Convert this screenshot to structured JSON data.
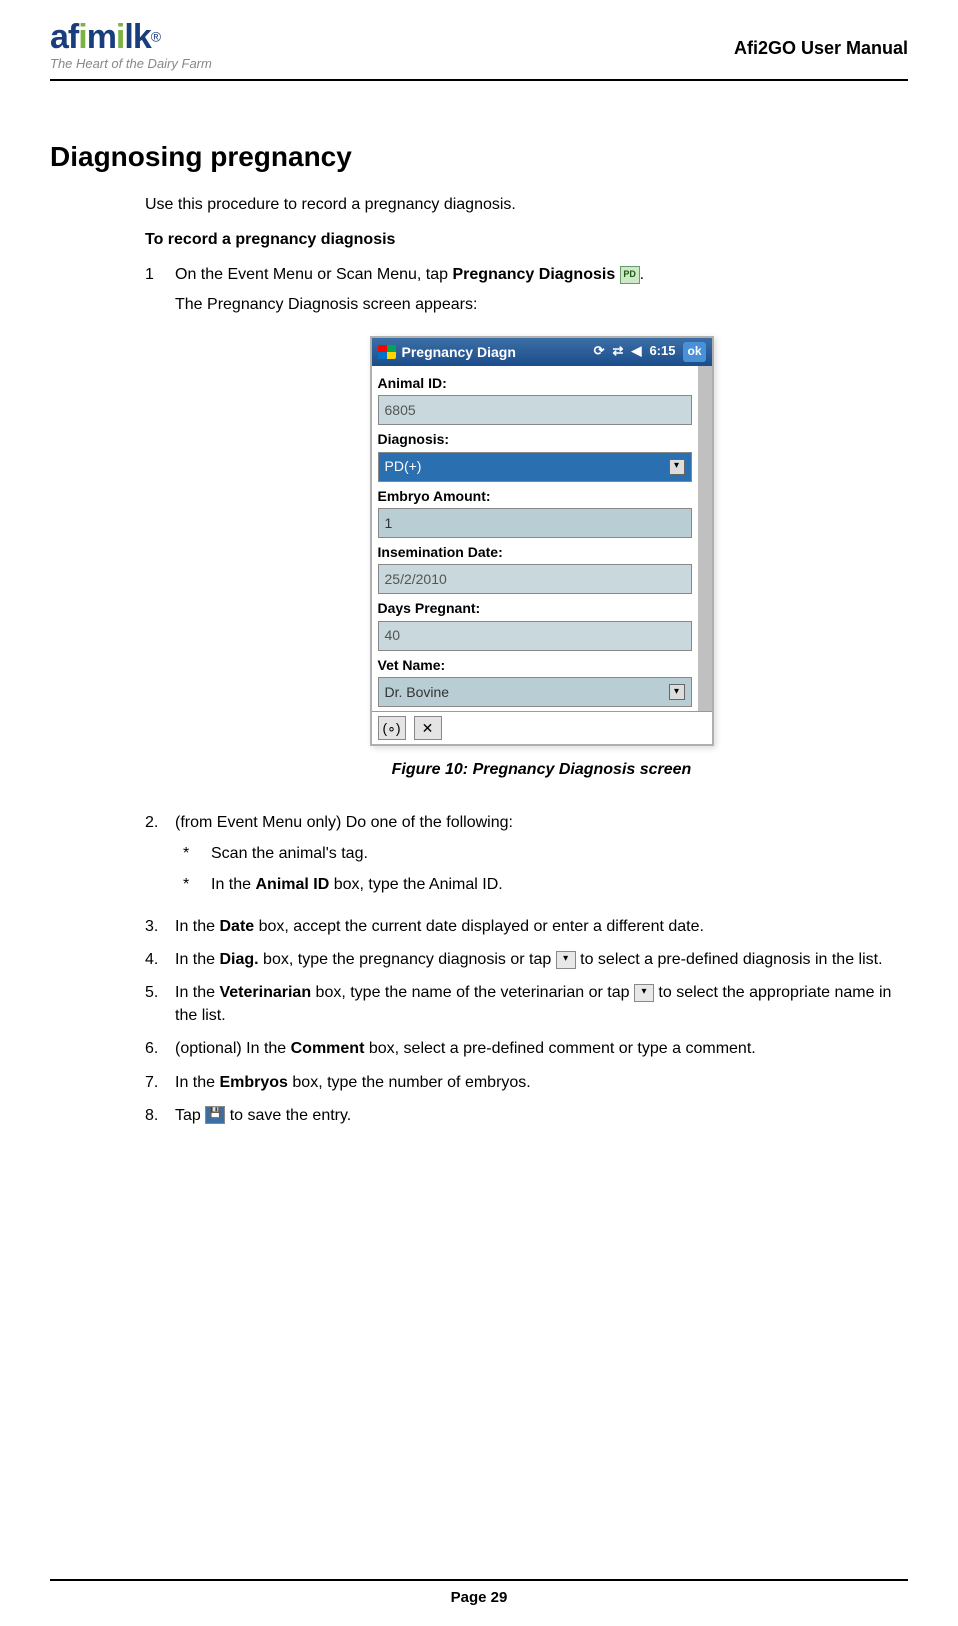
{
  "header": {
    "logo_text": "afimilk",
    "logo_reg": "®",
    "logo_tagline": "The Heart of the Dairy Farm",
    "manual_title": "Afi2GO User Manual"
  },
  "section": {
    "title": "Diagnosing pregnancy",
    "intro": "Use this procedure to record a pregnancy diagnosis.",
    "sub_heading": "To record a pregnancy diagnosis"
  },
  "steps": {
    "s1_num": "1",
    "s1_a": "On the Event Menu or Scan Menu, tap ",
    "s1_bold": "Pregnancy Diagnosis ",
    "s1_pd_icon": "PD",
    "s1_period": ".",
    "s1_after": "The Pregnancy Diagnosis screen appears:",
    "s2_num": "2.",
    "s2_text": "(from Event Menu only) Do one of the following:",
    "s2_sub_a": "Scan the animal's tag.",
    "s2_sub_b_a": "In the ",
    "s2_sub_b_bold": "Animal ID",
    "s2_sub_b_b": " box, type the Animal ID.",
    "s3_num": "3.",
    "s3_a": "In the ",
    "s3_bold": "Date",
    "s3_b": " box, accept the current date displayed or enter a different date.",
    "s4_num": "4.",
    "s4_a": "In the ",
    "s4_bold": "Diag.",
    "s4_b": " box, type the pregnancy diagnosis or tap ",
    "s4_dd_icon": "▾",
    "s4_c": " to select a pre-defined diagnosis in the list.",
    "s5_num": "5.",
    "s5_a": "In the ",
    "s5_bold": "Veterinarian",
    "s5_b": " box, type the name of the veterinarian or tap ",
    "s5_dd_icon": "▾",
    "s5_c": " to select the appropriate name in the list.",
    "s6_num": "6.",
    "s6_a": "(optional) In the ",
    "s6_bold": "Comment",
    "s6_b": " box, select a pre-defined comment or type a comment.",
    "s7_num": "7.",
    "s7_a": "In the ",
    "s7_bold": "Embryos",
    "s7_b": " box, type the number of embryos.",
    "s8_num": "8.",
    "s8_a": "Tap ",
    "s8_save_icon": "💾",
    "s8_b": " to save the entry."
  },
  "figure": {
    "caption": "Figure 10: Pregnancy Diagnosis screen"
  },
  "mock": {
    "title": "Pregnancy Diagn",
    "time": "6:15",
    "ok": "ok",
    "animal_id_label": "Animal ID:",
    "animal_id_value": "6805",
    "diagnosis_label": "Diagnosis:",
    "diagnosis_value": "PD(+)",
    "embryo_label": "Embryo Amount:",
    "embryo_value": "1",
    "insem_label": "Insemination Date:",
    "insem_value": "25/2/2010",
    "days_label": "Days Pregnant:",
    "days_value": "40",
    "vet_label": "Vet Name:",
    "vet_value": "Dr. Bovine",
    "speaker_icon": "◀",
    "sync_icon": "⟳",
    "net_icon": "⇄",
    "bottom1": "(∘)",
    "bottom2": "✕"
  },
  "footer": {
    "page": "Page 29"
  },
  "colors": {
    "titlebar_top": "#3b6ea5",
    "titlebar_bottom": "#1c4d8c",
    "field_bg": "#c8d8dc",
    "selected_bg": "#2a6fb0",
    "logo_color": "#1a3d7c",
    "logo_dot": "#7cb342"
  }
}
